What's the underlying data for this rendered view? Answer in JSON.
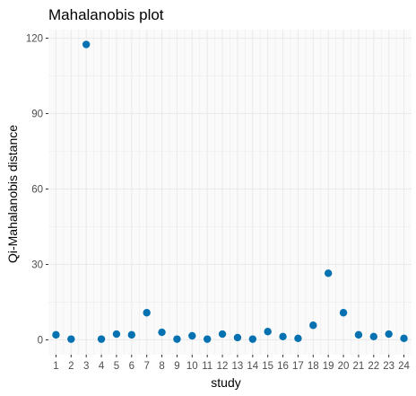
{
  "chart_data": {
    "type": "scatter",
    "title": "Mahalanobis plot",
    "xlabel": "study",
    "ylabel": "Qi-Mahalanobis distance",
    "x": [
      "1",
      "2",
      "3",
      "4",
      "5",
      "6",
      "7",
      "8",
      "9",
      "10",
      "11",
      "12",
      "13",
      "14",
      "15",
      "16",
      "17",
      "18",
      "19",
      "20",
      "21",
      "22",
      "23",
      "24"
    ],
    "values": [
      2.0,
      0.3,
      117.5,
      0.3,
      2.3,
      2.0,
      10.8,
      3.0,
      0.3,
      1.6,
      0.3,
      2.3,
      0.9,
      0.3,
      3.3,
      1.3,
      0.6,
      5.8,
      26.5,
      10.8,
      2.0,
      1.3,
      2.3,
      0.6
    ],
    "yticks": [
      0,
      30,
      60,
      90,
      120
    ],
    "ylim": [
      -5.9,
      123.4
    ],
    "xlim": [
      0.5,
      24.5
    ],
    "grid": true,
    "point_color": "#0571b0",
    "panel_background": "#fafafa",
    "grid_color": "#ebebeb"
  }
}
